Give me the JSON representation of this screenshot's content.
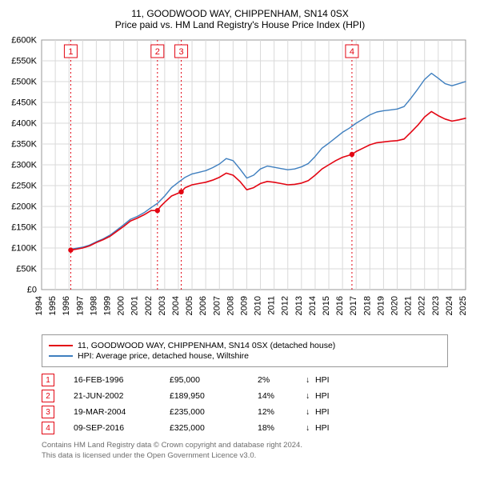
{
  "title": "11, GOODWOOD WAY, CHIPPENHAM, SN14 0SX",
  "subtitle": "Price paid vs. HM Land Registry's House Price Index (HPI)",
  "chart": {
    "type": "line",
    "background_color": "#ffffff",
    "plot_border_color": "#989898",
    "grid_color": "#d9d9d9",
    "axis_text_color": "#000000",
    "axis_fontsize": 11,
    "xlim_years": [
      1994,
      2025
    ],
    "x_ticks": [
      1994,
      1995,
      1996,
      1997,
      1998,
      1999,
      2000,
      2001,
      2002,
      2003,
      2004,
      2005,
      2006,
      2007,
      2008,
      2009,
      2010,
      2011,
      2012,
      2013,
      2014,
      2015,
      2016,
      2017,
      2018,
      2019,
      2020,
      2021,
      2022,
      2023,
      2024,
      2025
    ],
    "ylim": [
      0,
      600000
    ],
    "y_ticks": [
      0,
      50000,
      100000,
      150000,
      200000,
      250000,
      300000,
      350000,
      400000,
      450000,
      500000,
      550000,
      600000
    ],
    "y_tick_labels": [
      "£0",
      "£50K",
      "£100K",
      "£150K",
      "£200K",
      "£250K",
      "£300K",
      "£350K",
      "£400K",
      "£450K",
      "£500K",
      "£550K",
      "£600K"
    ],
    "series": [
      {
        "name": "11, GOODWOOD WAY, CHIPPENHAM, SN14 0SX (detached house)",
        "color": "#e30613",
        "line_width": 1.6,
        "data": [
          [
            1996.13,
            95000
          ],
          [
            1996.5,
            97000
          ],
          [
            1997,
            100000
          ],
          [
            1997.5,
            105000
          ],
          [
            1998,
            113000
          ],
          [
            1998.5,
            120000
          ],
          [
            1999,
            128000
          ],
          [
            1999.5,
            140000
          ],
          [
            2000,
            152000
          ],
          [
            2000.5,
            165000
          ],
          [
            2001,
            172000
          ],
          [
            2001.5,
            180000
          ],
          [
            2002,
            190000
          ],
          [
            2002.47,
            189950
          ],
          [
            2002.7,
            200000
          ],
          [
            2003,
            210000
          ],
          [
            2003.5,
            225000
          ],
          [
            2004,
            232000
          ],
          [
            2004.21,
            235000
          ],
          [
            2004.5,
            245000
          ],
          [
            2005,
            252000
          ],
          [
            2005.5,
            255000
          ],
          [
            2006,
            258000
          ],
          [
            2006.5,
            263000
          ],
          [
            2007,
            270000
          ],
          [
            2007.5,
            280000
          ],
          [
            2008,
            275000
          ],
          [
            2008.5,
            260000
          ],
          [
            2009,
            240000
          ],
          [
            2009.5,
            245000
          ],
          [
            2010,
            255000
          ],
          [
            2010.5,
            260000
          ],
          [
            2011,
            258000
          ],
          [
            2011.5,
            255000
          ],
          [
            2012,
            252000
          ],
          [
            2012.5,
            253000
          ],
          [
            2013,
            256000
          ],
          [
            2013.5,
            262000
          ],
          [
            2014,
            275000
          ],
          [
            2014.5,
            290000
          ],
          [
            2015,
            300000
          ],
          [
            2015.5,
            310000
          ],
          [
            2016,
            318000
          ],
          [
            2016.69,
            325000
          ],
          [
            2017,
            332000
          ],
          [
            2017.5,
            340000
          ],
          [
            2018,
            348000
          ],
          [
            2018.5,
            353000
          ],
          [
            2019,
            355000
          ],
          [
            2019.5,
            357000
          ],
          [
            2020,
            358000
          ],
          [
            2020.5,
            362000
          ],
          [
            2021,
            378000
          ],
          [
            2021.5,
            395000
          ],
          [
            2022,
            415000
          ],
          [
            2022.5,
            428000
          ],
          [
            2023,
            418000
          ],
          [
            2023.5,
            410000
          ],
          [
            2024,
            405000
          ],
          [
            2024.5,
            408000
          ],
          [
            2025,
            412000
          ]
        ]
      },
      {
        "name": "HPI: Average price, detached house, Wiltshire",
        "color": "#3f7fbf",
        "line_width": 1.4,
        "data": [
          [
            1996.13,
            97000
          ],
          [
            1996.5,
            99000
          ],
          [
            1997,
            102000
          ],
          [
            1997.5,
            107000
          ],
          [
            1998,
            115000
          ],
          [
            1998.5,
            122000
          ],
          [
            1999,
            131000
          ],
          [
            1999.5,
            143000
          ],
          [
            2000,
            156000
          ],
          [
            2000.5,
            169000
          ],
          [
            2001,
            176000
          ],
          [
            2001.5,
            185000
          ],
          [
            2002,
            197000
          ],
          [
            2002.5,
            208000
          ],
          [
            2003,
            225000
          ],
          [
            2003.5,
            245000
          ],
          [
            2004,
            258000
          ],
          [
            2004.5,
            270000
          ],
          [
            2005,
            278000
          ],
          [
            2005.5,
            282000
          ],
          [
            2006,
            286000
          ],
          [
            2006.5,
            293000
          ],
          [
            2007,
            302000
          ],
          [
            2007.5,
            315000
          ],
          [
            2008,
            310000
          ],
          [
            2008.5,
            290000
          ],
          [
            2009,
            268000
          ],
          [
            2009.5,
            275000
          ],
          [
            2010,
            290000
          ],
          [
            2010.5,
            297000
          ],
          [
            2011,
            294000
          ],
          [
            2011.5,
            291000
          ],
          [
            2012,
            288000
          ],
          [
            2012.5,
            290000
          ],
          [
            2013,
            295000
          ],
          [
            2013.5,
            303000
          ],
          [
            2014,
            320000
          ],
          [
            2014.5,
            340000
          ],
          [
            2015,
            352000
          ],
          [
            2015.5,
            365000
          ],
          [
            2016,
            378000
          ],
          [
            2016.5,
            388000
          ],
          [
            2017,
            400000
          ],
          [
            2017.5,
            410000
          ],
          [
            2018,
            420000
          ],
          [
            2018.5,
            427000
          ],
          [
            2019,
            430000
          ],
          [
            2019.5,
            432000
          ],
          [
            2020,
            434000
          ],
          [
            2020.5,
            440000
          ],
          [
            2021,
            460000
          ],
          [
            2021.5,
            482000
          ],
          [
            2022,
            505000
          ],
          [
            2022.5,
            520000
          ],
          [
            2023,
            508000
          ],
          [
            2023.5,
            495000
          ],
          [
            2024,
            490000
          ],
          [
            2024.5,
            495000
          ],
          [
            2025,
            500000
          ]
        ]
      }
    ],
    "markers": [
      {
        "n": "1",
        "year": 1996.13,
        "value": 95000
      },
      {
        "n": "2",
        "year": 2002.47,
        "value": 189950
      },
      {
        "n": "3",
        "year": 2004.21,
        "value": 235000
      },
      {
        "n": "4",
        "year": 2016.69,
        "value": 325000
      }
    ],
    "marker_line_color": "#e30613",
    "marker_box_border": "#e30613",
    "marker_box_fill": "#ffffff",
    "marker_text_color": "#e30613",
    "marker_dot_fill": "#e30613",
    "marker_dot_radius": 3.2
  },
  "legend": {
    "items": [
      {
        "color": "#e30613",
        "label": "11, GOODWOOD WAY, CHIPPENHAM, SN14 0SX (detached house)"
      },
      {
        "color": "#3f7fbf",
        "label": "HPI: Average price, detached house, Wiltshire"
      }
    ]
  },
  "events": [
    {
      "n": "1",
      "date": "16-FEB-1996",
      "price": "£95,000",
      "pct": "2%",
      "arrow": "↓",
      "hpi": "HPI"
    },
    {
      "n": "2",
      "date": "21-JUN-2002",
      "price": "£189,950",
      "pct": "14%",
      "arrow": "↓",
      "hpi": "HPI"
    },
    {
      "n": "3",
      "date": "19-MAR-2004",
      "price": "£235,000",
      "pct": "12%",
      "arrow": "↓",
      "hpi": "HPI"
    },
    {
      "n": "4",
      "date": "09-SEP-2016",
      "price": "£325,000",
      "pct": "18%",
      "arrow": "↓",
      "hpi": "HPI"
    }
  ],
  "footer": {
    "line1": "Contains HM Land Registry data © Crown copyright and database right 2024.",
    "line2": "This data is licensed under the Open Government Licence v3.0."
  }
}
